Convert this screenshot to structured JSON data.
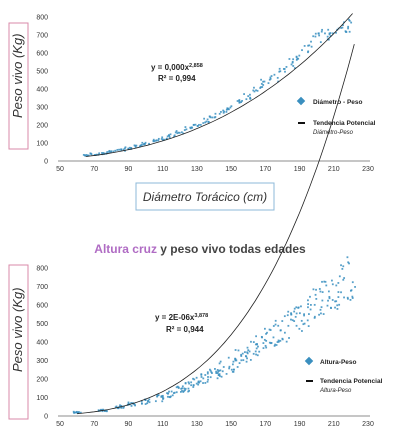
{
  "chart_data": [
    {
      "type": "scatter",
      "xlabel": "Diámetro Torácico (cm)",
      "ylabel": "Peso vivo (Kg)",
      "xlim": [
        50,
        230
      ],
      "ylim": [
        0,
        800
      ],
      "x_ticks": [
        "50",
        "70",
        "90",
        "110",
        "130",
        "150",
        "170",
        "190",
        "210",
        "230"
      ],
      "y_ticks": [
        "0",
        "100",
        "200",
        "300",
        "400",
        "500",
        "600",
        "700",
        "800"
      ],
      "equation": "y = 0,000x",
      "equation_exponent": "2,858",
      "r_squared": "R² = 0,994",
      "legend": {
        "series_label": "Diámetro - Peso",
        "trend_label": "Tendencia Potencial",
        "trend_sub": "Diámetro-Peso"
      },
      "series": [
        {
          "name": "Diámetro - Peso",
          "color": "#3a8fbf",
          "points": [
            [
              66,
              32
            ],
            [
              70,
              37
            ],
            [
              75,
              43
            ],
            [
              80,
              52
            ],
            [
              86,
              62
            ],
            [
              90,
              73
            ],
            [
              96,
              85
            ],
            [
              100,
              96
            ],
            [
              105,
              110
            ],
            [
              110,
              125
            ],
            [
              115,
              142
            ],
            [
              120,
              160
            ],
            [
              125,
              180
            ],
            [
              130,
              200
            ],
            [
              135,
              222
            ],
            [
              140,
              248
            ],
            [
              145,
              273
            ],
            [
              150,
              300
            ],
            [
              155,
              330
            ],
            [
              160,
              362
            ],
            [
              165,
              395
            ],
            [
              170,
              430
            ],
            [
              175,
              468
            ],
            [
              180,
              505
            ],
            [
              185,
              545
            ],
            [
              190,
              590
            ],
            [
              195,
              635
            ],
            [
              200,
              680
            ],
            [
              205,
              705
            ],
            [
              210,
              725
            ],
            [
              215,
              745
            ],
            [
              218,
              755
            ]
          ]
        },
        {
          "name": "Tendencia Potencial",
          "curve": {
            "x_from": 65,
            "x_to": 222,
            "a": 0.0001634,
            "b": 2.858
          }
        }
      ]
    },
    {
      "type": "scatter",
      "title_highlight": "Altura cruz",
      "title_rest": " y peso vivo todas edades",
      "ylabel": "Peso vivo (Kg)",
      "xlim": [
        50,
        230
      ],
      "ylim": [
        0,
        800
      ],
      "x_ticks": [
        "50",
        "70",
        "90",
        "110",
        "130",
        "150",
        "170",
        "190",
        "210",
        "230"
      ],
      "y_ticks": [
        "0",
        "100",
        "200",
        "300",
        "400",
        "500",
        "600",
        "700",
        "800"
      ],
      "equation": "y = 2E-06x",
      "equation_exponent": "3,878",
      "r_squared": "R² = 0,944",
      "legend": {
        "series_label": "Altura-Peso",
        "trend_label": "Tendencia Potencial",
        "trend_sub": "Altura-Peso"
      },
      "series": [
        {
          "name": "Altura-Peso",
          "color": "#3a8fbf",
          "points": [
            [
              60,
              18
            ],
            [
              75,
              32
            ],
            [
              85,
              48
            ],
            [
              92,
              62
            ],
            [
              100,
              78
            ],
            [
              108,
              98
            ],
            [
              115,
              118
            ],
            [
              120,
              140
            ],
            [
              125,
              160
            ],
            [
              130,
              182
            ],
            [
              135,
              205
            ],
            [
              140,
              228
            ],
            [
              145,
              255
            ],
            [
              150,
              282
            ],
            [
              155,
              310
            ],
            [
              160,
              345
            ],
            [
              165,
              380
            ],
            [
              170,
              410
            ],
            [
              175,
              445
            ],
            [
              180,
              470
            ],
            [
              185,
              505
            ],
            [
              190,
              540
            ],
            [
              195,
              575
            ],
            [
              200,
              610
            ],
            [
              205,
              640
            ],
            [
              210,
              675
            ],
            [
              215,
              710
            ],
            [
              220,
              745
            ]
          ]
        },
        {
          "name": "Tendencia Potencial",
          "curve": {
            "x_from": 60,
            "x_to": 222,
            "a": 1.6e-06,
            "b": 3.878
          }
        }
      ]
    }
  ]
}
